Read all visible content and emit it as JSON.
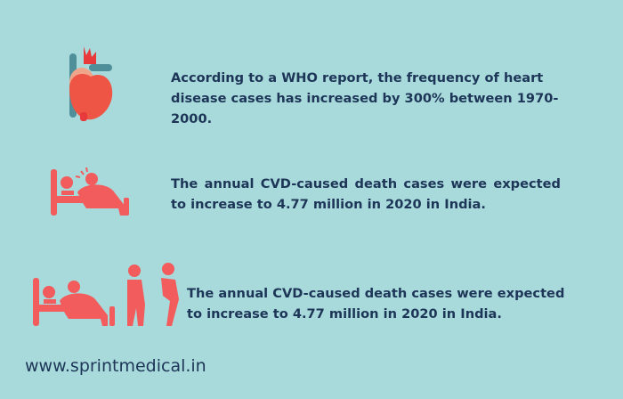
{
  "facts": [
    {
      "icon": "heart-icon",
      "text": "According to a WHO report, the frequency of heart disease cases has increased by 300% between 1970-2000."
    },
    {
      "icon": "patient-in-bed-icon",
      "text": "The annual CVD-caused death cases were expected to increase to 4.77 million in 2020 in India."
    },
    {
      "icon": "grieving-family-icon",
      "text": "The annual CVD-caused death cases were expected to increase to 4.77 million in 2020 in India."
    }
  ],
  "footer": {
    "website": "www.sprintmedical.in"
  },
  "colors": {
    "background": "#a8dadc",
    "text": "#1d3557",
    "accent": "#f25c5c",
    "vessel": "#4f8f9a"
  }
}
